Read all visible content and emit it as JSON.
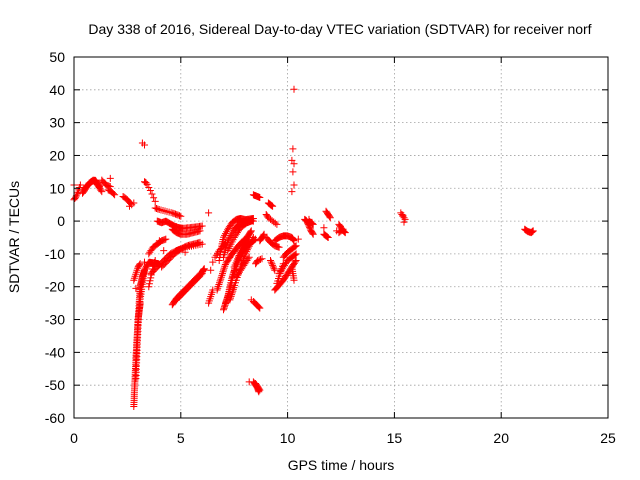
{
  "chart_data": {
    "type": "scatter",
    "title": "Day 338 of 2016, Sidereal Day-to-day VTEC variation (SDTVAR) for receiver norf",
    "xlabel": "GPS time / hours",
    "ylabel": "SDTVAR / TECUs",
    "xlim": [
      0,
      25
    ],
    "ylim": [
      -60,
      50
    ],
    "xticks": [
      0,
      5,
      10,
      15,
      20,
      25
    ],
    "yticks": [
      -60,
      -50,
      -40,
      -30,
      -20,
      -10,
      0,
      10,
      20,
      30,
      40,
      50
    ],
    "grid": true,
    "legend": "none",
    "marker": "+",
    "color": "#ff0000",
    "series": [
      {
        "name": "SDTVAR",
        "traces": [
          {
            "x": [
              0.0,
              0.1,
              0.2,
              0.3
            ],
            "y": [
              6.5,
              7.5,
              9.0,
              11.0
            ],
            "steps": 8
          },
          {
            "x": [
              0.4,
              0.6,
              0.8,
              1.0,
              1.2
            ],
            "y": [
              8.5,
              10.5,
              12.0,
              12.5,
              10.5
            ],
            "steps": 26
          },
          {
            "x": [
              0.45,
              0.7,
              0.9,
              1.1,
              1.3
            ],
            "y": [
              9.5,
              11.5,
              12.5,
              11.0,
              9.0
            ],
            "steps": 20
          },
          {
            "x": [
              1.3,
              1.5,
              1.7
            ],
            "y": [
              12.5,
              11.0,
              10.5
            ],
            "steps": 8
          },
          {
            "x": [
              1.6,
              1.75,
              1.9
            ],
            "y": [
              9.5,
              9.0,
              8.0
            ],
            "steps": 6
          },
          {
            "x": [
              2.3,
              2.5,
              2.7
            ],
            "y": [
              7.5,
              6.5,
              5.0
            ],
            "steps": 8
          },
          {
            "x": [
              3.3,
              3.4,
              3.6,
              3.8
            ],
            "y": [
              12.0,
              11.5,
              9.0,
              6.0
            ],
            "steps": 8
          },
          {
            "x": [
              3.8,
              4.0,
              4.3,
              4.6,
              4.8,
              5.0
            ],
            "y": [
              4.0,
              3.5,
              3.0,
              2.5,
              2.0,
              1.5
            ],
            "steps": 16
          },
          {
            "x": [
              3.9,
              4.1,
              4.3,
              4.5,
              4.7,
              4.9,
              5.1,
              5.4,
              5.7,
              6.0
            ],
            "y": [
              0.0,
              -0.5,
              0.0,
              -0.8,
              -1.5,
              -2.0,
              -2.2,
              -2.0,
              -1.8,
              -1.5
            ],
            "steps": 44
          },
          {
            "x": [
              4.6,
              4.8,
              5.0,
              5.3,
              5.6,
              5.9
            ],
            "y": [
              -2.5,
              -3.5,
              -4.0,
              -4.0,
              -3.5,
              -3.0
            ],
            "steps": 24
          },
          {
            "x": [
              2.8,
              2.85,
              2.9,
              2.95,
              3.0,
              3.1
            ],
            "y": [
              -56.5,
              -49.0,
              -42.0,
              -36.0,
              -30.0,
              -25.0
            ],
            "steps": 60
          },
          {
            "x": [
              2.9,
              2.95,
              3.0,
              3.05,
              3.1,
              3.2,
              3.3
            ],
            "y": [
              -48.0,
              -40.0,
              -32.0,
              -25.0,
              -20.0,
              -17.0,
              -15.0
            ],
            "steps": 50
          },
          {
            "x": [
              3.0,
              3.1,
              3.2,
              3.3,
              3.5,
              3.8,
              4.0
            ],
            "y": [
              -30.0,
              -24.0,
              -19.0,
              -15.0,
              -12.5,
              -12.8,
              -13.2
            ],
            "steps": 40
          },
          {
            "x": [
              2.8,
              2.9,
              3.0,
              3.1
            ],
            "y": [
              -18.0,
              -16.0,
              -14.0,
              -13.0
            ],
            "steps": 10
          },
          {
            "x": [
              3.5,
              3.6,
              3.7,
              3.8
            ],
            "y": [
              -20.0,
              -17.0,
              -14.0,
              -12.0
            ],
            "steps": 10
          },
          {
            "x": [
              3.5,
              3.7,
              3.9,
              4.1,
              4.3
            ],
            "y": [
              -10.0,
              -8.0,
              -7.0,
              -6.0,
              -5.5
            ],
            "steps": 16
          },
          {
            "x": [
              3.6,
              3.9,
              4.2,
              4.5,
              4.8,
              5.0
            ],
            "y": [
              -16.0,
              -14.0,
              -12.0,
              -10.0,
              -9.0,
              -8.5
            ],
            "steps": 26
          },
          {
            "x": [
              4.1,
              4.4,
              4.7,
              5.0,
              5.3,
              5.6,
              5.9
            ],
            "y": [
              -14.0,
              -12.0,
              -10.0,
              -8.5,
              -7.5,
              -7.0,
              -6.5
            ],
            "steps": 30
          },
          {
            "x": [
              4.8,
              5.2,
              5.6,
              6.0
            ],
            "y": [
              -9.0,
              -8.0,
              -7.5,
              -7.0
            ],
            "steps": 12
          },
          {
            "x": [
              4.6,
              4.8,
              5.1,
              5.4,
              5.7,
              6.0,
              6.1
            ],
            "y": [
              -25.5,
              -23.5,
              -21.5,
              -19.5,
              -17.5,
              -15.5,
              -14.5
            ],
            "steps": 36
          },
          {
            "x": [
              4.8,
              5.1,
              5.4,
              5.7,
              6.0
            ],
            "y": [
              -24.0,
              -22.0,
              -20.0,
              -18.0,
              -16.0
            ],
            "steps": 22
          },
          {
            "x": [
              6.3,
              6.4,
              6.5
            ],
            "y": [
              -25.0,
              -23.0,
              -21.0
            ],
            "steps": 6
          },
          {
            "x": [
              6.6,
              6.8,
              7.0,
              7.1
            ],
            "y": [
              -11.0,
              -9.0,
              -7.5,
              -6.5
            ],
            "steps": 10
          },
          {
            "x": [
              6.7,
              6.9,
              7.1,
              7.4,
              7.7,
              8.0
            ],
            "y": [
              -21.0,
              -17.0,
              -13.0,
              -10.0,
              -7.5,
              -5.5
            ],
            "steps": 36
          },
          {
            "x": [
              7.0,
              7.2,
              7.4,
              7.7,
              8.0,
              8.2
            ],
            "y": [
              -27.0,
              -23.0,
              -17.0,
              -12.0,
              -8.0,
              -6.0
            ],
            "steps": 44
          },
          {
            "x": [
              7.1,
              7.3,
              7.5,
              7.7,
              7.9,
              8.1,
              8.3
            ],
            "y": [
              -25.0,
              -21.0,
              -15.0,
              -11.0,
              -7.5,
              -5.0,
              -3.0
            ],
            "steps": 40
          },
          {
            "x": [
              7.3,
              7.5,
              7.8,
              8.1,
              8.4
            ],
            "y": [
              -24.0,
              -20.0,
              -14.0,
              -9.0,
              -5.0
            ],
            "steps": 30
          },
          {
            "x": [
              6.8,
              6.9,
              7.0,
              7.2,
              7.4,
              7.6,
              7.8,
              8.0,
              8.2,
              8.4
            ],
            "y": [
              -12.0,
              -8.0,
              -5.0,
              -2.5,
              -0.5,
              0.5,
              0.8,
              0.5,
              0.2,
              0.0
            ],
            "steps": 40
          },
          {
            "x": [
              7.0,
              7.2,
              7.5,
              7.8,
              8.1,
              8.4
            ],
            "y": [
              -11.0,
              -6.0,
              -2.5,
              -0.5,
              0.5,
              0.8
            ],
            "steps": 34
          },
          {
            "x": [
              7.2,
              7.5,
              7.8,
              8.1,
              8.3
            ],
            "y": [
              -9.0,
              -5.0,
              -2.0,
              -0.5,
              0.0
            ],
            "steps": 24
          },
          {
            "x": [
              7.5,
              7.7,
              7.9,
              8.1,
              8.3,
              8.5
            ],
            "y": [
              -14.0,
              -11.0,
              -9.0,
              -7.5,
              -6.5,
              -5.5
            ],
            "steps": 24
          },
          {
            "x": [
              7.6,
              7.8,
              8.0,
              8.2
            ],
            "y": [
              -17.0,
              -15.0,
              -13.0,
              -11.0
            ],
            "steps": 12
          },
          {
            "x": [
              8.4,
              8.55,
              8.7
            ],
            "y": [
              8.0,
              7.6,
              7.2
            ],
            "steps": 8
          },
          {
            "x": [
              8.4,
              8.55,
              8.7
            ],
            "y": [
              -24.5,
              -25.5,
              -26.5
            ],
            "steps": 8
          },
          {
            "x": [
              8.4,
              8.5,
              8.6,
              8.65
            ],
            "y": [
              -49.0,
              -50.0,
              -51.0,
              -52.0
            ],
            "steps": 10
          },
          {
            "x": [
              8.5,
              8.6,
              8.7
            ],
            "y": [
              -49.5,
              -50.5,
              -51.5
            ],
            "steps": 6
          },
          {
            "x": [
              8.5,
              8.6,
              8.8
            ],
            "y": [
              -13.0,
              -12.0,
              -11.5
            ],
            "steps": 6
          },
          {
            "x": [
              8.7,
              8.8,
              8.9
            ],
            "y": [
              -6.0,
              -5.0,
              -4.0
            ],
            "steps": 6
          },
          {
            "x": [
              9.0,
              9.1,
              9.3,
              9.5
            ],
            "y": [
              2.0,
              1.0,
              0.0,
              -1.0
            ],
            "steps": 8
          },
          {
            "x": [
              9.1,
              9.2,
              9.3
            ],
            "y": [
              5.5,
              5.0,
              4.5
            ],
            "steps": 6
          },
          {
            "x": [
              9.0,
              9.2,
              9.4,
              9.6
            ],
            "y": [
              -5.0,
              -6.5,
              -7.5,
              -8.0
            ],
            "steps": 12
          },
          {
            "x": [
              9.2,
              9.3,
              9.4
            ],
            "y": [
              -12.0,
              -13.5,
              -15.0
            ],
            "steps": 6
          },
          {
            "x": [
              9.5,
              9.6,
              9.7,
              9.8
            ],
            "y": [
              -19.0,
              -17.0,
              -15.0,
              -13.0
            ],
            "steps": 8
          },
          {
            "x": [
              9.4,
              9.6,
              9.8,
              10.0,
              10.2,
              10.3
            ],
            "y": [
              -6.0,
              -5.0,
              -4.5,
              -4.5,
              -5.0,
              -6.0
            ],
            "steps": 22
          },
          {
            "x": [
              9.4,
              9.6,
              9.8,
              10.0,
              10.2,
              10.4
            ],
            "y": [
              -21.0,
              -19.5,
              -18.0,
              -16.0,
              -14.0,
              -12.0
            ],
            "steps": 24
          },
          {
            "x": [
              9.6,
              9.8,
              10.0,
              10.2,
              10.4
            ],
            "y": [
              -16.0,
              -14.0,
              -12.0,
              -11.0,
              -10.0
            ],
            "steps": 16
          },
          {
            "x": [
              9.8,
              10.0,
              10.2,
              10.4
            ],
            "y": [
              -11.0,
              -9.5,
              -8.5,
              -7.5
            ],
            "steps": 12
          },
          {
            "x": [
              10.2,
              10.3
            ],
            "y": [
              -14.0,
              -18.0
            ],
            "steps": 6
          },
          {
            "x": [
              10.8,
              10.9,
              11.0,
              11.1,
              11.2
            ],
            "y": [
              0.5,
              0.0,
              -1.5,
              -3.0,
              -4.0
            ],
            "steps": 14
          },
          {
            "x": [
              11.0,
              11.1,
              11.2
            ],
            "y": [
              0.0,
              -0.5,
              -1.0
            ],
            "steps": 6
          },
          {
            "x": [
              11.7,
              11.8,
              11.9
            ],
            "y": [
              -4.0,
              -4.5,
              -5.0
            ],
            "steps": 6
          },
          {
            "x": [
              11.8,
              11.85,
              11.9,
              11.95,
              12.0
            ],
            "y": [
              3.0,
              2.5,
              2.0,
              1.5,
              1.0
            ],
            "steps": 6
          },
          {
            "x": [
              12.4,
              12.5,
              12.6,
              12.7
            ],
            "y": [
              -1.0,
              -2.0,
              -3.0,
              -3.5
            ],
            "steps": 8
          },
          {
            "x": [
              12.4,
              12.5,
              12.6
            ],
            "y": [
              -3.5,
              -3.0,
              -2.5
            ],
            "steps": 4
          },
          {
            "x": [
              15.3,
              15.4,
              15.5
            ],
            "y": [
              2.5,
              1.5,
              0.5
            ],
            "steps": 4
          },
          {
            "x": [
              21.1,
              21.25,
              21.4,
              21.5
            ],
            "y": [
              -2.5,
              -3.2,
              -3.5,
              -3.0
            ],
            "steps": 12
          }
        ],
        "points": [
          [
            0.0,
            11.0
          ],
          [
            3.3,
            23.2
          ],
          [
            3.2,
            23.8
          ],
          [
            10.3,
            40.2
          ],
          [
            10.25,
            22.0
          ],
          [
            10.2,
            18.5
          ],
          [
            10.3,
            17.5
          ],
          [
            10.25,
            15.0
          ],
          [
            10.2,
            9.0
          ],
          [
            10.3,
            11.0
          ],
          [
            6.3,
            2.5
          ],
          [
            5.2,
            -9.5
          ],
          [
            8.3,
            -24.0
          ],
          [
            8.2,
            -49.0
          ],
          [
            10.5,
            -5.5
          ],
          [
            11.0,
            0.5
          ],
          [
            11.7,
            -2.0
          ],
          [
            12.3,
            -3.0
          ],
          [
            15.4,
            1.8
          ],
          [
            15.45,
            -0.3
          ],
          [
            1.7,
            13.0
          ],
          [
            2.6,
            4.5
          ],
          [
            2.8,
            5.5
          ],
          [
            3.1,
            -21.5
          ],
          [
            2.9,
            -20.5
          ],
          [
            6.5,
            -12.5
          ],
          [
            6.4,
            -15.0
          ],
          [
            3.3,
            -12.5
          ],
          [
            4.0,
            -6.0
          ],
          [
            4.2,
            -9.0
          ]
        ]
      }
    ]
  }
}
